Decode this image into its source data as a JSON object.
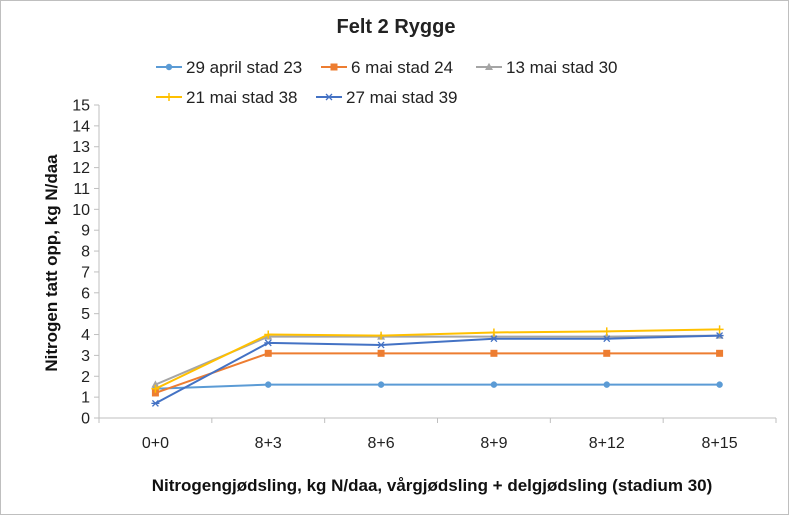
{
  "chart_data": {
    "type": "line",
    "title": "Felt 2 Rygge",
    "xlabel": "Nitrogengjødsling, kg N/daa, vårgjødsling + delgjødsling (stadium 30)",
    "ylabel": "Nitrogen tatt opp, kg N/daa",
    "categories": [
      "0+0",
      "8+3",
      "8+6",
      "8+9",
      "8+12",
      "8+15"
    ],
    "ylim": [
      0,
      15
    ],
    "yticks": [
      0,
      1,
      2,
      3,
      4,
      5,
      6,
      7,
      8,
      9,
      10,
      11,
      12,
      13,
      14,
      15
    ],
    "grid": false,
    "legend_position": "top",
    "series": [
      {
        "name": "29 april stad 23",
        "color": "#5b9bd5",
        "marker": "circle",
        "values": [
          1.4,
          1.6,
          1.6,
          1.6,
          1.6,
          1.6
        ]
      },
      {
        "name": "6 mai stad 24",
        "color": "#ed7d31",
        "marker": "square",
        "values": [
          1.2,
          3.1,
          3.1,
          3.1,
          3.1,
          3.1
        ]
      },
      {
        "name": "13 mai stad 30",
        "color": "#a5a5a5",
        "marker": "triangle",
        "values": [
          1.6,
          3.9,
          3.9,
          3.9,
          3.9,
          3.95
        ]
      },
      {
        "name": "21 mai stad 38",
        "color": "#ffc000",
        "marker": "plus",
        "values": [
          1.4,
          4.0,
          3.95,
          4.1,
          4.15,
          4.25
        ]
      },
      {
        "name": "27 mai stad 39",
        "color": "#4472c4",
        "marker": "star",
        "values": [
          0.7,
          3.6,
          3.5,
          3.8,
          3.8,
          3.95
        ]
      }
    ]
  }
}
